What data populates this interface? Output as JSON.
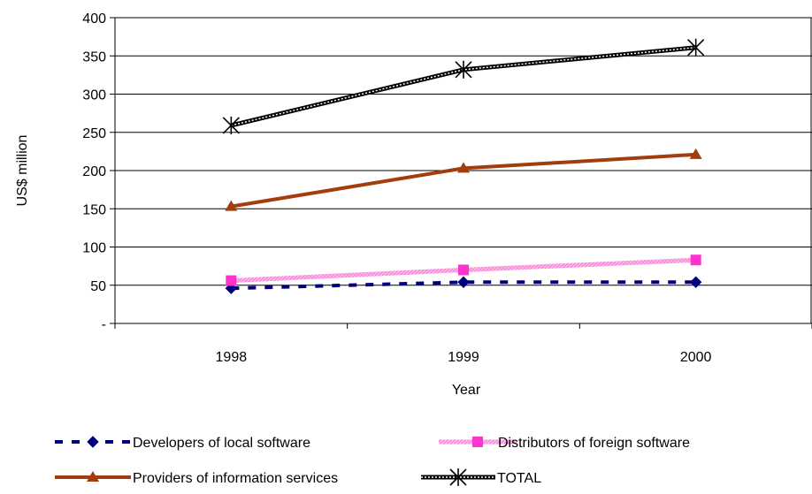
{
  "chart_data": {
    "type": "line",
    "title": "",
    "xlabel": "Year",
    "ylabel": "US$ million",
    "categories": [
      "1998",
      "1999",
      "2000"
    ],
    "ylim": [
      0,
      400
    ],
    "yticks": [
      0,
      50,
      100,
      150,
      200,
      250,
      300,
      350,
      400
    ],
    "ytick_labels": [
      "-",
      "50",
      "100",
      "150",
      "200",
      "250",
      "300",
      "350",
      "400"
    ],
    "grid": true,
    "legend_position": "bottom",
    "series": [
      {
        "name": "Developers of local software",
        "values": [
          46,
          54,
          54
        ],
        "color": "#00007f",
        "marker": "diamond",
        "line": "dashed"
      },
      {
        "name": "Distributors of foreign software",
        "values": [
          56,
          70,
          83
        ],
        "color": "#ff33cc",
        "marker": "square",
        "line": "hatched"
      },
      {
        "name": "Providers of information services",
        "values": [
          153,
          203,
          221
        ],
        "color": "#a33d0e",
        "marker": "triangle",
        "line": "solid"
      },
      {
        "name": "TOTAL",
        "values": [
          259,
          332,
          361
        ],
        "color": "#000000",
        "marker": "star",
        "line": "double"
      }
    ]
  }
}
